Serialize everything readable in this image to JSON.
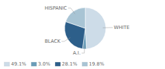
{
  "chart_data": {
    "type": "pie",
    "categories": [
      "WHITE",
      "A.I.",
      "BLACK",
      "HISPANIC"
    ],
    "values": [
      49.1,
      3.0,
      28.1,
      19.8
    ],
    "value_labels": [
      "49.1%",
      "3.0%",
      "28.1%",
      "19.8%"
    ],
    "colors": [
      "#cddce8",
      "#6a9db8",
      "#2d5f8a",
      "#a8c4d4"
    ],
    "legend": "lower left"
  }
}
